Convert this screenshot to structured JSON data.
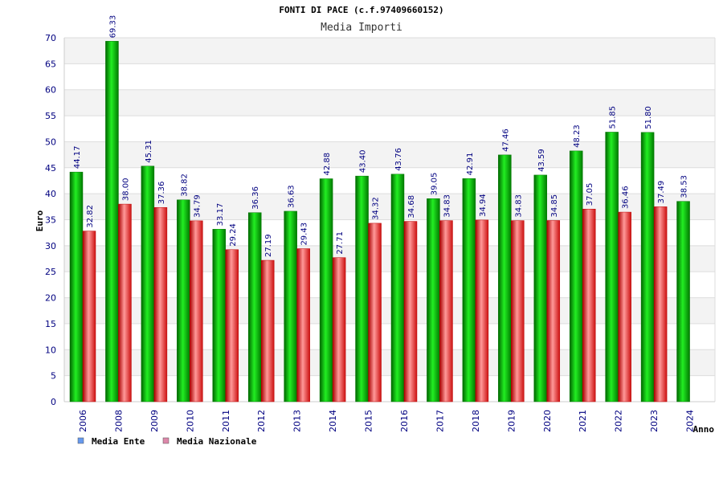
{
  "chart_data": {
    "type": "bar",
    "title": "FONTI DI PACE (c.f.97409660152)",
    "subtitle": "Media Importi",
    "xlabel": "Anno",
    "ylabel": "Euro",
    "ylim": [
      0,
      70
    ],
    "yticks": [
      0,
      5,
      10,
      15,
      20,
      25,
      30,
      35,
      40,
      45,
      50,
      55,
      60,
      65,
      70
    ],
    "categories": [
      "2006",
      "2008",
      "2009",
      "2010",
      "2011",
      "2012",
      "2013",
      "2014",
      "2015",
      "2016",
      "2017",
      "2018",
      "2019",
      "2020",
      "2021",
      "2022",
      "2023",
      "2024"
    ],
    "series": [
      {
        "name": "Media Ente",
        "color": "#00b000",
        "values": [
          44.17,
          69.33,
          45.31,
          38.82,
          33.17,
          36.36,
          36.63,
          42.88,
          43.4,
          43.76,
          39.05,
          42.91,
          47.46,
          43.59,
          48.23,
          51.85,
          51.8,
          38.53
        ],
        "labels": [
          "44.17",
          "69.33",
          "45.31",
          "38.82",
          "33.17",
          "36.36",
          "36.63",
          "42.88",
          "43.40",
          "43.76",
          "39.05",
          "42.91",
          "47.46",
          "43.59",
          "48.23",
          "51.85",
          "51.80",
          "38.53"
        ]
      },
      {
        "name": "Media Nazionale",
        "color": "#e02020",
        "values": [
          32.82,
          38.0,
          37.36,
          34.79,
          29.24,
          27.19,
          29.43,
          27.71,
          34.32,
          34.68,
          34.83,
          34.94,
          34.83,
          34.85,
          37.05,
          36.46,
          37.49,
          null
        ],
        "labels": [
          "32.82",
          "38.00",
          "37.36",
          "34.79",
          "29.24",
          "27.19",
          "29.43",
          "27.71",
          "34.32",
          "34.68",
          "34.83",
          "34.94",
          "34.83",
          "34.85",
          "37.05",
          "36.46",
          "37.49",
          ""
        ]
      }
    ],
    "legend": [
      {
        "label": "Media Ente",
        "color": "#6699ee"
      },
      {
        "label": "Media Nazionale",
        "color": "#dd88aa"
      }
    ],
    "legend_position": "bottom-left",
    "grid": true
  }
}
